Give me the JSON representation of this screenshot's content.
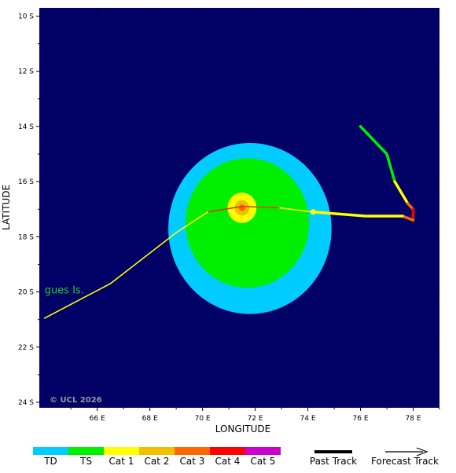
{
  "chart_data": {
    "type": "map",
    "title": "",
    "xlabel": "LONGITUDE",
    "ylabel": "LATITUDE",
    "xlim": [
      63.8,
      79.0
    ],
    "ylim": [
      -24.2,
      -9.7
    ],
    "x_ticks": [
      66,
      68,
      70,
      72,
      74,
      76,
      78
    ],
    "x_tick_labels": [
      "66 E",
      "68 E",
      "70 E",
      "72 E",
      "74 E",
      "76 E",
      "78 E"
    ],
    "y_ticks": [
      -10,
      -12,
      -14,
      -16,
      -18,
      -20,
      -22,
      -24
    ],
    "y_tick_labels": [
      "10 S",
      "12 S",
      "14 S",
      "16 S",
      "18 S",
      "20 S",
      "22 S",
      "24 S"
    ],
    "background_color": "#000066",
    "place_labels": [
      {
        "text": "gues Is.",
        "lon": 64.0,
        "lat": -20.05,
        "color": "#22cc22"
      }
    ],
    "watermark": "© UCL 2026",
    "wind_radii": [
      {
        "category": "TD",
        "center_lon": 71.8,
        "center_lat": -17.7,
        "radius_deg": 3.1,
        "color": "#00ccff"
      },
      {
        "category": "TS",
        "center_lon": 71.7,
        "center_lat": -17.5,
        "radius_deg": 2.35,
        "color": "#00ee00"
      },
      {
        "category": "Cat 1",
        "center_lon": 71.5,
        "center_lat": -16.95,
        "radius_deg": 0.55,
        "color": "#ffff00"
      },
      {
        "category": "Cat 2",
        "center_lon": 71.5,
        "center_lat": -16.95,
        "radius_deg": 0.28,
        "color": "#f0c000"
      },
      {
        "category": "Cat 3",
        "center_lon": 71.5,
        "center_lat": -16.95,
        "radius_deg": 0.12,
        "color": "#ff6600"
      }
    ],
    "past_track": {
      "segments": [
        {
          "points": [
            [
              76.0,
              -14.0
            ],
            [
              77.0,
              -15.0
            ],
            [
              77.3,
              -16.0
            ]
          ],
          "color": "#00ee00"
        },
        {
          "points": [
            [
              77.3,
              -16.0
            ],
            [
              77.8,
              -16.8
            ]
          ],
          "color": "#ffff00"
        },
        {
          "points": [
            [
              77.8,
              -16.8
            ],
            [
              78.0,
              -17.0
            ]
          ],
          "color": "#ff6600"
        },
        {
          "points": [
            [
              78.0,
              -17.0
            ],
            [
              78.0,
              -17.4
            ]
          ],
          "color": "#ff0000"
        },
        {
          "points": [
            [
              78.0,
              -17.4
            ],
            [
              77.6,
              -17.25
            ]
          ],
          "color": "#ff6600"
        },
        {
          "points": [
            [
              77.6,
              -17.25
            ],
            [
              76.2,
              -17.25
            ],
            [
              74.2,
              -17.1
            ]
          ],
          "color": "#ffff00"
        }
      ]
    },
    "forecast_track": {
      "segments": [
        {
          "points": [
            [
              74.2,
              -17.1
            ],
            [
              72.9,
              -16.95
            ],
            [
              71.5,
              -16.9
            ]
          ],
          "color": "#ffff00"
        },
        {
          "points": [
            [
              72.9,
              -16.95
            ],
            [
              71.5,
              -16.9
            ],
            [
              70.2,
              -17.1
            ]
          ],
          "color": "#cc4400"
        },
        {
          "points": [
            [
              70.2,
              -17.1
            ],
            [
              69.0,
              -17.85
            ],
            [
              66.5,
              -19.7
            ],
            [
              64.0,
              -20.95
            ]
          ],
          "color": "#ffff00"
        }
      ],
      "current_position": {
        "lon": 74.2,
        "lat": -17.1,
        "color": "#ffff00"
      }
    }
  },
  "legend": {
    "categories": [
      {
        "label": "TD",
        "color": "#00ccff"
      },
      {
        "label": "TS",
        "color": "#00ee00"
      },
      {
        "label": "Cat 1",
        "color": "#ffff00"
      },
      {
        "label": "Cat 2",
        "color": "#f0c000"
      },
      {
        "label": "Cat 3",
        "color": "#ff6600"
      },
      {
        "label": "Cat 4",
        "color": "#ff0000"
      },
      {
        "label": "Cat 5",
        "color": "#cc00cc"
      }
    ],
    "past_track_label": "Past Track",
    "forecast_track_label": "Forecast Track"
  }
}
